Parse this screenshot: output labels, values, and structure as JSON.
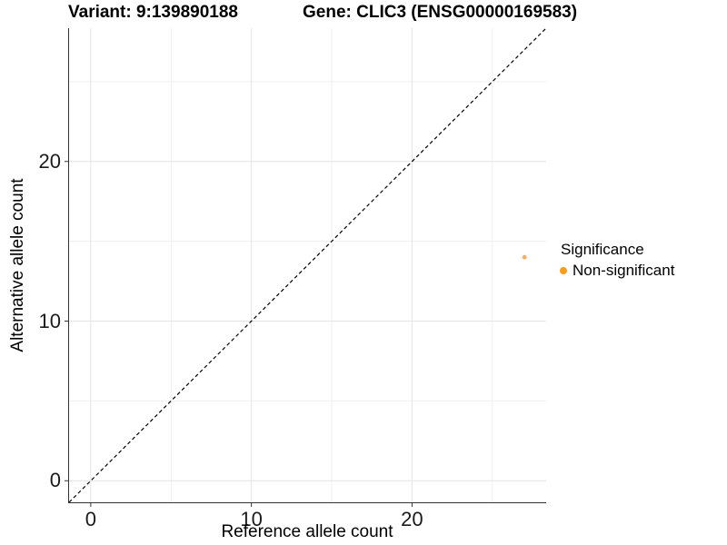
{
  "header": {
    "variant_title": "Variant: 9:139890188",
    "gene_title": "Gene: CLIC3 (ENSG00000169583)"
  },
  "chart_data": {
    "type": "scatter",
    "xlabel": "Reference allele count",
    "ylabel": "Alternative allele count",
    "xlim": [
      -1.35,
      28.35
    ],
    "ylim": [
      -1.35,
      28.35
    ],
    "x_major_ticks": [
      0,
      10,
      20
    ],
    "x_minor_ticks": [
      5,
      15,
      25
    ],
    "y_major_ticks": [
      0,
      10,
      20
    ],
    "y_minor_ticks": [
      5,
      15,
      25
    ],
    "grid": true,
    "identity_line": {
      "style": "dashed",
      "x1": -1.35,
      "y1": -1.35,
      "x2": 28.35,
      "y2": 28.35
    },
    "series": [
      {
        "name": "Non-significant",
        "points": [
          {
            "x": 27,
            "y": 14
          }
        ]
      }
    ],
    "legend": {
      "position": "right",
      "title": "Significance",
      "items": [
        {
          "label": "Non-significant"
        }
      ]
    }
  },
  "colors": {
    "point": "#FAA547",
    "legend_dot": "#F89C20",
    "grid_major": "#E4E4E4",
    "grid_minor": "#EFEFEF",
    "axis_line": "#333333",
    "tick_mark": "#333333",
    "identity_line": "#000000"
  }
}
